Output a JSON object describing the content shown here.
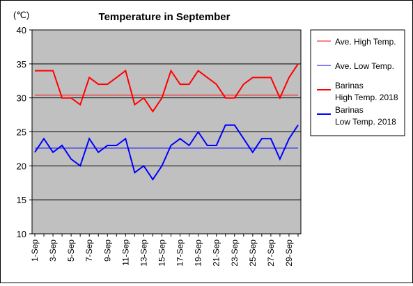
{
  "chart_data": {
    "type": "line",
    "title": "Temperature in September",
    "unit_label": "(℃)",
    "ylim": [
      10,
      40
    ],
    "y_ticks": [
      10,
      15,
      20,
      25,
      30,
      35,
      40
    ],
    "grid": true,
    "legend_position": "right",
    "categories": [
      "1-Sep",
      "2-Sep",
      "3-Sep",
      "4-Sep",
      "5-Sep",
      "6-Sep",
      "7-Sep",
      "8-Sep",
      "9-Sep",
      "10-Sep",
      "11-Sep",
      "12-Sep",
      "13-Sep",
      "14-Sep",
      "15-Sep",
      "16-Sep",
      "17-Sep",
      "18-Sep",
      "19-Sep",
      "20-Sep",
      "21-Sep",
      "22-Sep",
      "23-Sep",
      "24-Sep",
      "25-Sep",
      "26-Sep",
      "27-Sep",
      "28-Sep",
      "29-Sep",
      "30-Sep"
    ],
    "tick_labels": [
      "1-Sep",
      "3-Sep",
      "5-Sep",
      "7-Sep",
      "9-Sep",
      "11-Sep",
      "13-Sep",
      "15-Sep",
      "17-Sep",
      "19-Sep",
      "21-Sep",
      "23-Sep",
      "25-Sep",
      "27-Sep",
      "29-Sep"
    ],
    "series": [
      {
        "name": "Ave. High Temp.",
        "color": "#ff0000",
        "values": [
          30.4,
          30.4,
          30.4,
          30.4,
          30.4,
          30.4,
          30.4,
          30.4,
          30.4,
          30.4,
          30.4,
          30.4,
          30.4,
          30.4,
          30.4,
          30.4,
          30.4,
          30.4,
          30.4,
          30.4,
          30.4,
          30.4,
          30.4,
          30.4,
          30.4,
          30.4,
          30.4,
          30.4,
          30.4,
          30.4
        ],
        "thick": false
      },
      {
        "name": "Ave. Low Temp.",
        "color": "#0000ff",
        "values": [
          22.6,
          22.6,
          22.6,
          22.6,
          22.6,
          22.6,
          22.6,
          22.6,
          22.6,
          22.6,
          22.6,
          22.6,
          22.6,
          22.6,
          22.6,
          22.6,
          22.6,
          22.6,
          22.6,
          22.6,
          22.6,
          22.6,
          22.6,
          22.6,
          22.6,
          22.6,
          22.6,
          22.6,
          22.6,
          22.6
        ],
        "thick": false
      },
      {
        "name": "Barinas High Temp. 2018",
        "name_lines": [
          "Barinas",
          "High Temp. 2018"
        ],
        "color": "#ff0000",
        "values": [
          34,
          34,
          34,
          30,
          30,
          29,
          33,
          32,
          32,
          33,
          34,
          29,
          30,
          28,
          30,
          34,
          32,
          32,
          34,
          33,
          32,
          30,
          30,
          32,
          33,
          33,
          33,
          30,
          33,
          35
        ],
        "thick": true
      },
      {
        "name": "Barinas Low Temp. 2018",
        "name_lines": [
          "Barinas",
          "Low Temp. 2018"
        ],
        "color": "#0000ff",
        "values": [
          22,
          24,
          22,
          23,
          21,
          20,
          24,
          22,
          23,
          23,
          24,
          19,
          20,
          18,
          20,
          23,
          24,
          23,
          25,
          23,
          23,
          26,
          26,
          24,
          22,
          24,
          24,
          21,
          24,
          26
        ],
        "thick": true
      }
    ]
  }
}
